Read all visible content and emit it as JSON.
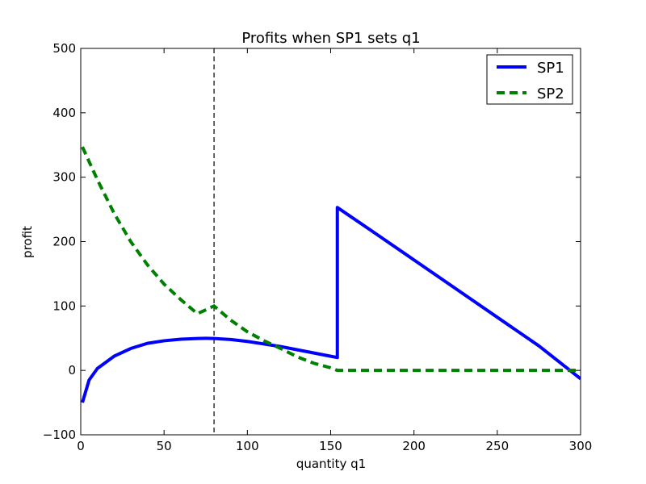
{
  "chart_data": {
    "type": "line",
    "title": "Profits when SP1 sets q1",
    "xlabel": "quantity q1",
    "ylabel": "profit",
    "xlim": [
      0,
      300
    ],
    "ylim": [
      -100,
      500
    ],
    "xticks": [
      0,
      50,
      100,
      150,
      200,
      250,
      300
    ],
    "yticks": [
      -100,
      0,
      100,
      200,
      300,
      400,
      500
    ],
    "grid": false,
    "legend_position": "top-right",
    "vline": {
      "x": 80,
      "style": "dashed",
      "color": "#000000"
    },
    "series": [
      {
        "name": "SP1",
        "color": "#0000ff",
        "style": "solid",
        "x": [
          1,
          5,
          10,
          20,
          30,
          40,
          50,
          60,
          70,
          75,
          80,
          90,
          100,
          110,
          120,
          130,
          140,
          150,
          154,
          154,
          175,
          200,
          225,
          250,
          275,
          300
        ],
        "y": [
          -50,
          -15,
          3,
          22,
          34,
          42,
          46,
          48.5,
          49.5,
          49.8,
          49.5,
          48,
          45,
          41,
          37,
          32,
          27,
          22,
          20,
          253,
          216,
          171.5,
          127,
          82.5,
          38,
          -13
        ]
      },
      {
        "name": "SP2",
        "color": "#008000",
        "style": "dashed",
        "x": [
          1,
          10,
          20,
          30,
          40,
          50,
          60,
          70,
          80,
          90,
          100,
          110,
          120,
          130,
          140,
          150,
          154,
          175,
          200,
          225,
          250,
          275,
          300
        ],
        "y": [
          347,
          296,
          244,
          200,
          164,
          134,
          110,
          88,
          100,
          78,
          60,
          46,
          34,
          21,
          11,
          4,
          0,
          0,
          0,
          0,
          0,
          0,
          0
        ]
      }
    ]
  }
}
